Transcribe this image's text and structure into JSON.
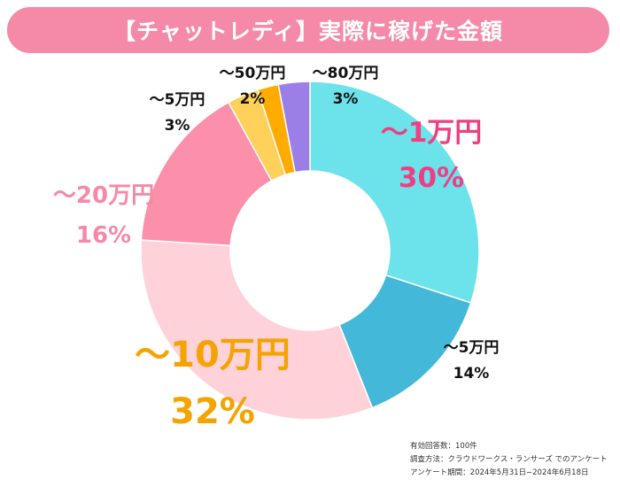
{
  "chart_data": {
    "type": "pie",
    "title": "【チャットレディ】実際に稼げた金額",
    "slices": [
      {
        "label": "～1万円",
        "value": 30,
        "pct": "30%",
        "color": "#6ce2ea",
        "label_color": "#ef3e82"
      },
      {
        "label": "～5万円",
        "value": 14,
        "pct": "14%",
        "color": "#44b8d8",
        "label_color": "#111111"
      },
      {
        "label": "～10万円",
        "value": 32,
        "pct": "32%",
        "color": "#ffd1d8",
        "label_color": "#f5a300"
      },
      {
        "label": "～20万円",
        "value": 16,
        "pct": "16%",
        "color": "#fc8fa9",
        "label_color": "#f58aa8"
      },
      {
        "label": "～5万円",
        "value": 3,
        "pct": "3%",
        "color": "#ffd05a",
        "label_color": "#111111"
      },
      {
        "label": "～50万円",
        "value": 2,
        "pct": "2%",
        "color": "#ffab00",
        "label_color": "#111111"
      },
      {
        "label": "～80万円",
        "value": 3,
        "pct": "3%",
        "color": "#9b7fe6",
        "label_color": "#111111"
      }
    ]
  },
  "footnote": {
    "line1": "有効回答数：100件",
    "line2": "調査方法：クラウドワークス・ランサーズ でのアンケート",
    "line3": "アンケート期間：2024年5月31日−2024年6月18日"
  }
}
